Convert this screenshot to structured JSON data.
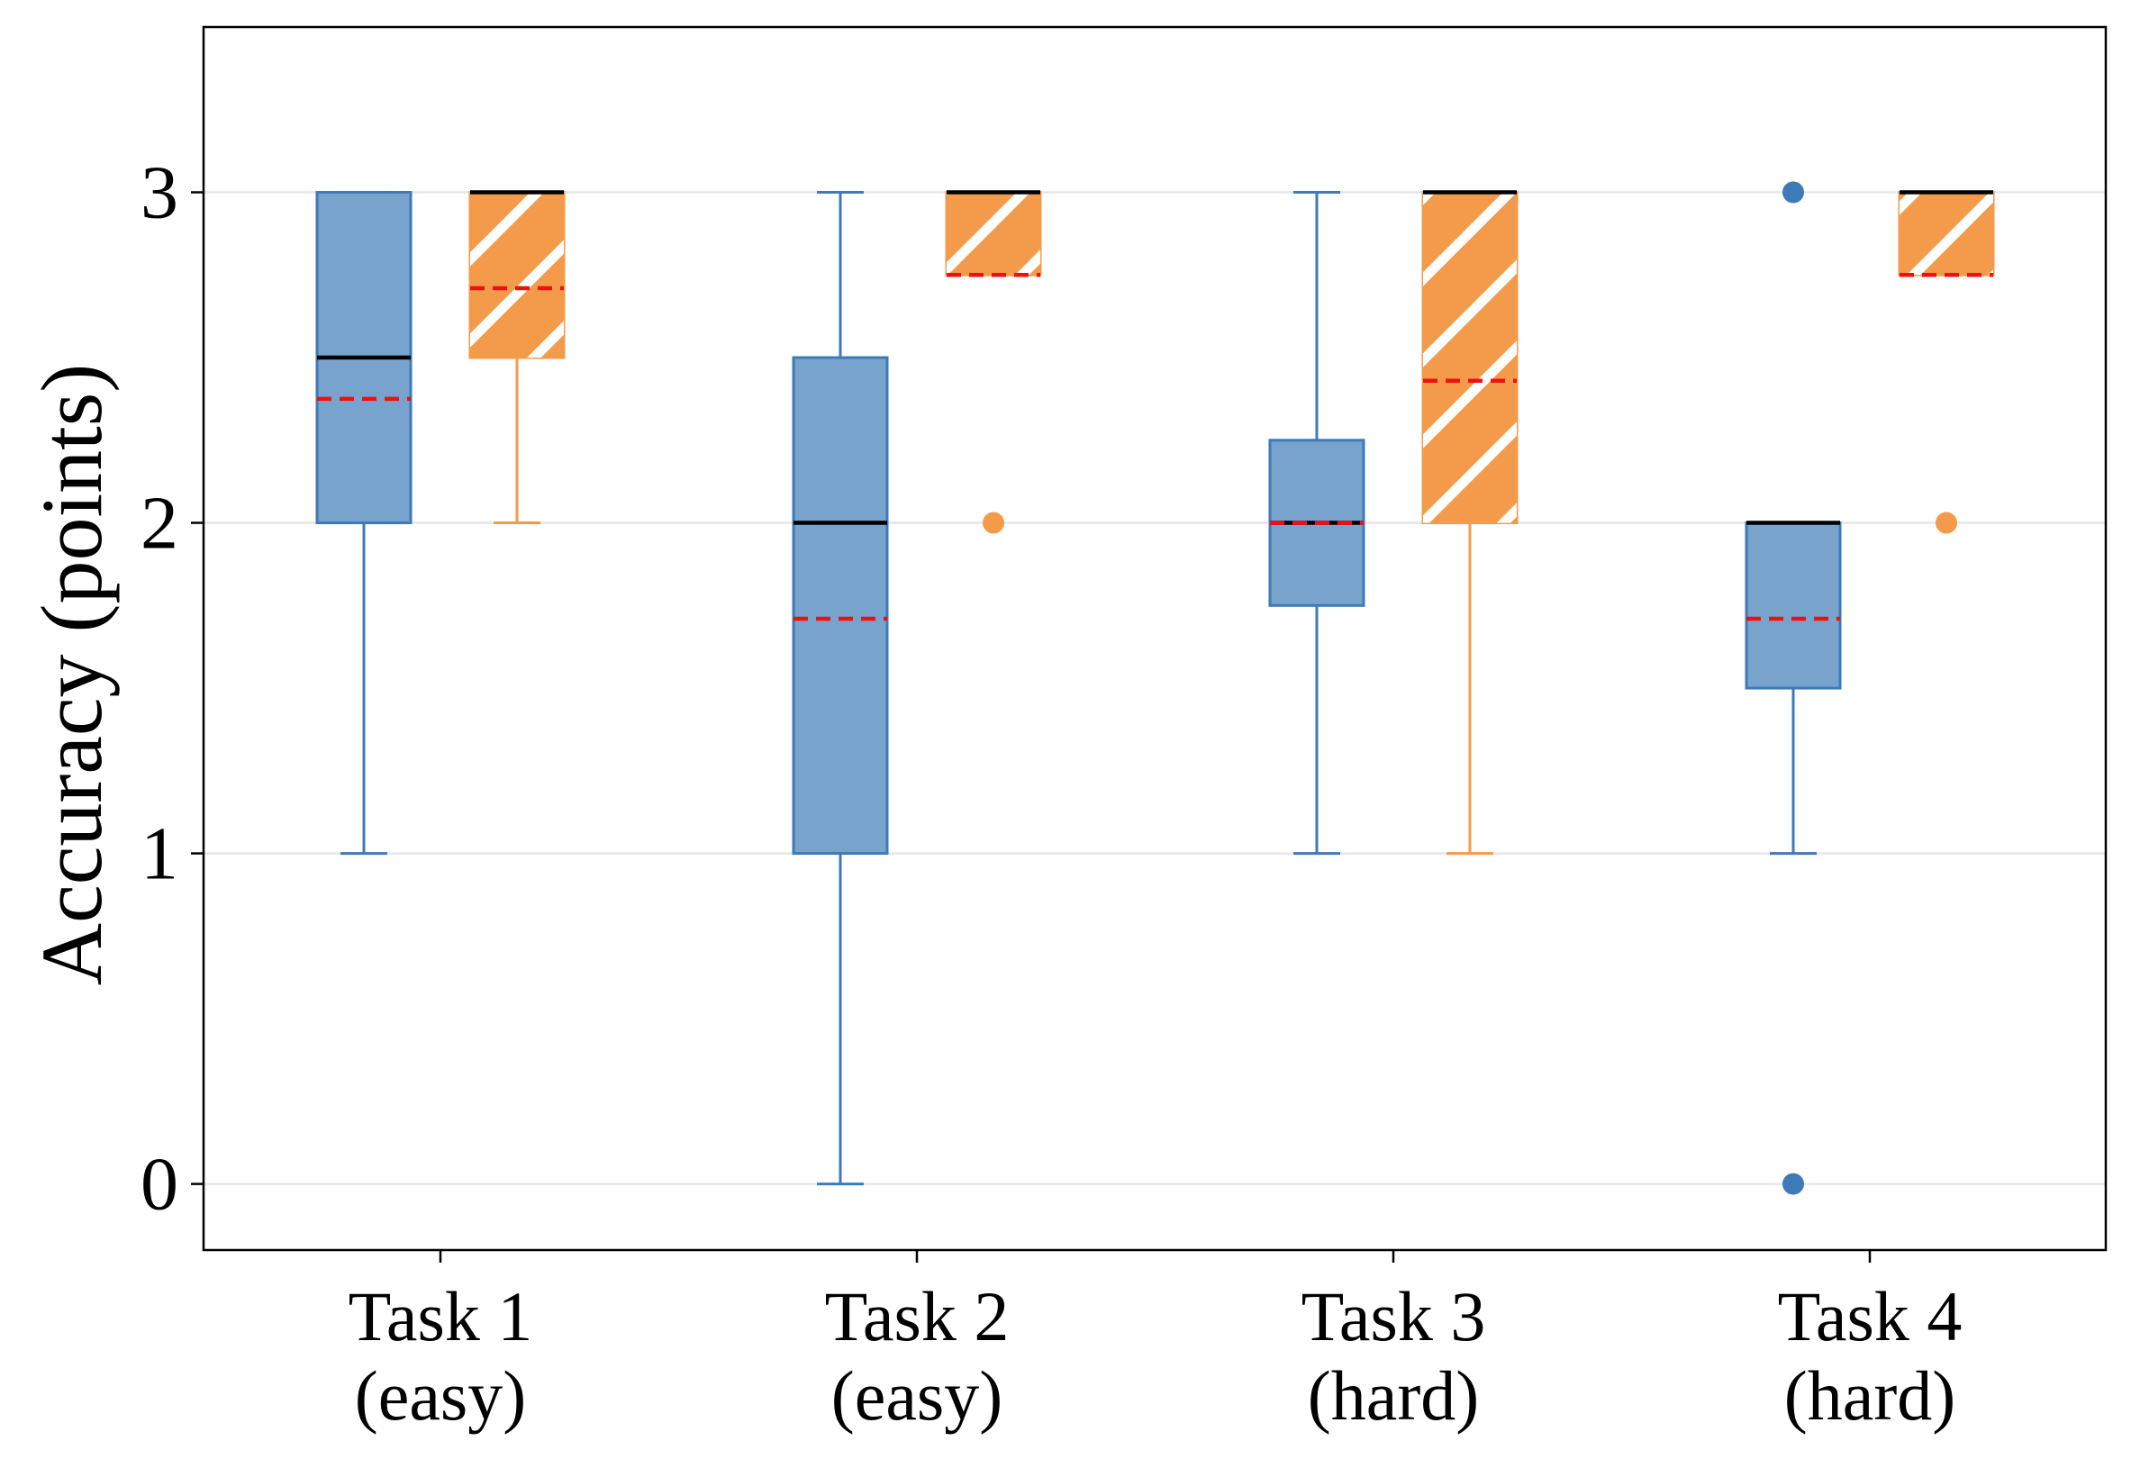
{
  "chart_data": {
    "type": "box",
    "ylabel": "Accuracy (points)",
    "ylim": [
      -0.2,
      3.5
    ],
    "yticks": [
      0,
      1,
      2,
      3
    ],
    "grid": "horizontal",
    "categories": [
      {
        "line1": "Task 1",
        "line2": "(easy)"
      },
      {
        "line1": "Task 2",
        "line2": "(easy)"
      },
      {
        "line1": "Task 3",
        "line2": "(hard)"
      },
      {
        "line1": "Task 4",
        "line2": "(hard)"
      }
    ],
    "series": [
      {
        "fill": "#77a3cd",
        "edge": "#3f7ab8",
        "hatch": false,
        "boxes": [
          {
            "whislo": 1,
            "q1": 2,
            "median": 2.5,
            "q3": 3,
            "whishi": 3,
            "mean": 2.375,
            "fliers": []
          },
          {
            "whislo": 0,
            "q1": 1,
            "median": 2,
            "q3": 2.5,
            "whishi": 3,
            "mean": 1.71,
            "fliers": []
          },
          {
            "whislo": 1,
            "q1": 1.75,
            "median": 2,
            "q3": 2.25,
            "whishi": 3,
            "mean": 2.0,
            "fliers": []
          },
          {
            "whislo": 1,
            "q1": 1.5,
            "median": 2,
            "q3": 2,
            "whishi": 2,
            "mean": 1.71,
            "fliers": [
              3,
              0
            ]
          }
        ]
      },
      {
        "fill": "#f39b4b",
        "edge": "#f39b4b",
        "hatch": true,
        "boxes": [
          {
            "whislo": 2,
            "q1": 2.5,
            "median": 3,
            "q3": 3,
            "whishi": 3,
            "mean": 2.71,
            "fliers": []
          },
          {
            "whislo": 2.75,
            "q1": 2.75,
            "median": 3,
            "q3": 3,
            "whishi": 3,
            "mean": 2.75,
            "fliers": [
              2
            ]
          },
          {
            "whislo": 1,
            "q1": 2,
            "median": 3,
            "q3": 3,
            "whishi": 3,
            "mean": 2.43,
            "fliers": []
          },
          {
            "whislo": 2.75,
            "q1": 2.75,
            "median": 3,
            "q3": 3,
            "whishi": 3,
            "mean": 2.75,
            "fliers": [
              2
            ]
          }
        ]
      }
    ],
    "median_color": "#000000",
    "mean_color": "#ee1111",
    "grid_color": "#e6e6e6"
  }
}
